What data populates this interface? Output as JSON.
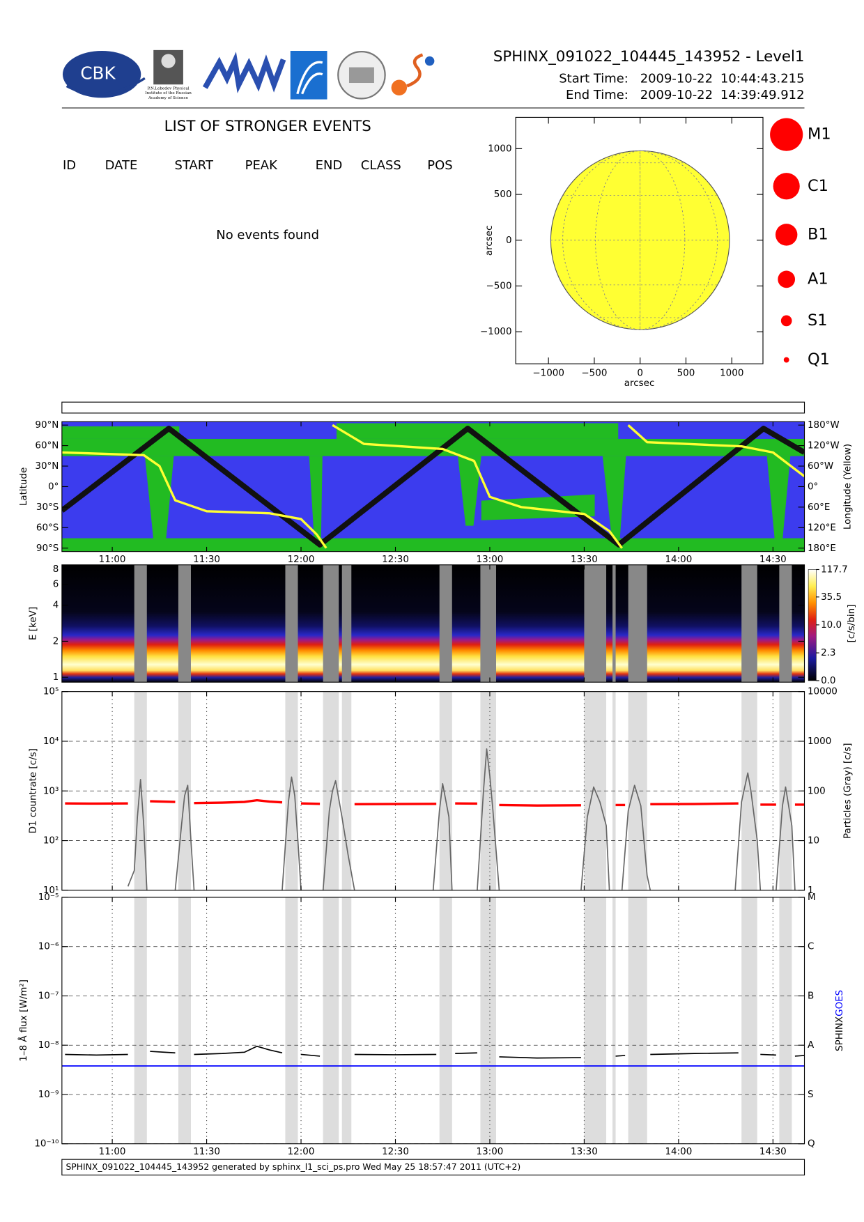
{
  "header": {
    "title": "SPHINX_091022_104445_143952 - Level1",
    "start_label": "Start Time:",
    "start_date": "2009-10-22",
    "start_time": "10:44:43.215",
    "end_label": "End Time:",
    "end_date": "2009-10-22",
    "end_time": "14:39:49.912",
    "logo_cbk": "CBK",
    "logo_lebedev": [
      "P.N.Lebedev Physical",
      "Institute of the Russian",
      "Academy of Science"
    ]
  },
  "events": {
    "title": "LIST OF STRONGER EVENTS",
    "columns": [
      "ID",
      "DATE",
      "START",
      "PEAK",
      "END",
      "CLASS",
      "POS"
    ],
    "message": "No events found"
  },
  "flare_classes": [
    "M1",
    "C1",
    "B1",
    "A1",
    "S1",
    "Q1"
  ],
  "data_gaps": [
    [
      "11:07",
      "11:11"
    ],
    [
      "11:21",
      "11:25"
    ],
    [
      "11:55",
      "11:59"
    ],
    [
      "12:07",
      "12:12"
    ],
    [
      "12:13",
      "12:16"
    ],
    [
      "12:44",
      "12:48"
    ],
    [
      "12:57",
      "13:02"
    ],
    [
      "13:30",
      "13:37"
    ],
    [
      "13:39",
      "13:40"
    ],
    [
      "13:44",
      "13:50"
    ],
    [
      "14:20",
      "14:25"
    ],
    [
      "14:32",
      "14:36"
    ]
  ],
  "chart_data": [
    {
      "type": "disk",
      "xlabel": "arcsec",
      "ylabel": "arcsec",
      "xlim": [
        -1357,
        1340
      ],
      "ylim": [
        -1350,
        1342
      ],
      "xticks": [
        {
          "value": -1000,
          "label": "−1000"
        },
        {
          "value": -500,
          "label": "−500"
        },
        0,
        500,
        1000
      ],
      "yticks": [
        {
          "value": -1000,
          "label": "−1000"
        },
        {
          "value": -500,
          "label": "−500"
        },
        0,
        500,
        1000
      ],
      "radius": 975,
      "color": "#ffff33"
    },
    {
      "type": "line",
      "ylabel": "Latitude",
      "y2label": "Longitude (Yellow)",
      "xlim": [
        "10:44",
        "14:40"
      ],
      "xticks": [
        "11:00",
        "11:30",
        "12:00",
        "12:30",
        "13:00",
        "13:30",
        "14:00",
        "14:30"
      ],
      "ylim": [
        -95,
        95
      ],
      "yticks": [
        {
          "value": -90,
          "label": "90°S"
        },
        {
          "value": -60,
          "label": "60°S"
        },
        {
          "value": -30,
          "label": "30°S"
        },
        {
          "value": 0,
          "label": "0°"
        },
        {
          "value": 30,
          "label": "30°N"
        },
        {
          "value": 60,
          "label": "60°N"
        },
        {
          "value": 90,
          "label": "90°N"
        }
      ],
      "y2lim": [
        -190,
        190
      ],
      "y2ticks": [
        {
          "value": -180,
          "label": "180°E"
        },
        {
          "value": -120,
          "label": "120°E"
        },
        {
          "value": -60,
          "label": "60°E"
        },
        {
          "value": 0,
          "label": "0°"
        },
        {
          "value": 60,
          "label": "60°W"
        },
        {
          "value": 120,
          "label": "120°W"
        },
        {
          "value": 180,
          "label": "180°W"
        }
      ],
      "series": [
        {
          "color": "#111111",
          "x": [
            "10:44",
            "11:18",
            "12:06",
            "12:53",
            "13:41",
            "14:27",
            "14:40"
          ],
          "values": [
            -35,
            85,
            -85,
            85,
            -85,
            85,
            50
          ]
        },
        {
          "color": "#ffff33",
          "axis": "y2",
          "x": [
            "10:44",
            "11:10",
            "11:15",
            "11:20",
            "11:30",
            "11:50",
            "12:00",
            "12:05",
            "12:08",
            "12:09",
            "12:10",
            "12:20",
            "12:45",
            "12:55",
            "13:00",
            "13:10",
            "13:30",
            "13:38",
            "13:42",
            "13:43",
            "13:44",
            "13:50",
            "14:20",
            "14:30",
            "14:40"
          ],
          "values": [
            100,
            92,
            60,
            -40,
            -72,
            -78,
            -95,
            -140,
            -180,
            null,
            180,
            125,
            110,
            75,
            -30,
            -60,
            -80,
            -130,
            -180,
            null,
            180,
            130,
            118,
            100,
            30
          ]
        }
      ]
    },
    {
      "type": "spectrogram",
      "ylabel": "E [keV]",
      "log_y": true,
      "xlim": [
        "10:44",
        "14:40"
      ],
      "xticks": [
        "11:00",
        "11:30",
        "12:00",
        "12:30",
        "13:00",
        "13:30",
        "14:00",
        "14:30"
      ],
      "ylim": [
        0.91,
        8.7
      ],
      "yticks": [
        1,
        2,
        4,
        6,
        8
      ],
      "clim": [
        0,
        117.7
      ],
      "cscale": "log1p",
      "cticks": [
        {
          "value": 0,
          "label": "0.0"
        },
        2.3,
        {
          "value": 10,
          "label": "10.0"
        },
        35.5,
        117.7
      ],
      "clabel": "[c/s/bin]"
    },
    {
      "type": "line",
      "ylabel": "D1 countrate [c/s]",
      "y2label": "Particles (Gray) [c/s]",
      "log_y": true,
      "grid": true,
      "xlim": [
        "10:44",
        "14:40"
      ],
      "xticks": [
        "11:00",
        "11:30",
        "12:00",
        "12:30",
        "13:00",
        "13:30",
        "14:00",
        "14:30"
      ],
      "ylim": [
        10,
        100000
      ],
      "yticks": [
        {
          "value": 10,
          "label": "10¹"
        },
        {
          "value": 100,
          "label": "10²"
        },
        {
          "value": 1000,
          "label": "10³"
        },
        {
          "value": 10000,
          "label": "10⁴"
        },
        {
          "value": 100000,
          "label": "10⁵"
        }
      ],
      "y2lim": [
        1,
        10000
      ],
      "y2ticks": [
        1,
        10,
        100,
        1000,
        10000
      ],
      "series": [
        {
          "color": "#ff0000",
          "x": [
            "10:45",
            "10:55",
            "11:05",
            "11:09",
            "11:12",
            "11:20",
            "11:23",
            "11:26",
            "11:35",
            "11:42",
            "11:46",
            "11:50",
            "11:54",
            "11:57",
            "12:00",
            "12:06",
            "12:14",
            "12:17",
            "12:30",
            "12:43",
            "12:46",
            "12:49",
            "12:56",
            "13:00",
            "13:03",
            "13:15",
            "13:29",
            "13:33",
            "13:40",
            "13:43",
            "13:47",
            "13:51",
            "14:05",
            "14:19",
            "14:22",
            "14:26",
            "14:31",
            "14:34",
            "14:37",
            "14:40"
          ],
          "values": [
            560,
            555,
            560,
            null,
            620,
            600,
            null,
            570,
            580,
            600,
            650,
            610,
            590,
            null,
            560,
            550,
            null,
            540,
            545,
            550,
            null,
            560,
            555,
            null,
            520,
            510,
            515,
            null,
            520,
            520,
            null,
            540,
            545,
            560,
            null,
            530,
            530,
            null,
            530,
            530
          ]
        },
        {
          "color": "#666666",
          "axis": "y2",
          "x": [
            "11:05",
            "11:07",
            "11:08",
            "11:09",
            "11:10",
            "11:11",
            "11:15",
            "11:20",
            "11:22",
            "11:23",
            "11:24",
            "11:25",
            "11:26",
            "11:40",
            "11:54",
            "11:56",
            "11:57",
            "11:58",
            "11:59",
            "12:00",
            "12:04",
            "12:07",
            "12:09",
            "12:10",
            "12:11",
            "12:13",
            "12:15",
            "12:17",
            "12:30",
            "12:42",
            "12:44",
            "12:45",
            "12:47",
            "12:48",
            "12:52",
            "12:56",
            "12:58",
            "12:59",
            "13:00",
            "13:01",
            "13:03",
            "13:20",
            "13:29",
            "13:31",
            "13:33",
            "13:35",
            "13:37",
            "13:38",
            "13:41",
            "13:42",
            "13:44",
            "13:46",
            "13:48",
            "13:50",
            "13:51",
            "14:10",
            "14:18",
            "14:20",
            "14:22",
            "14:23",
            "14:25",
            "14:26",
            "14:29",
            "14:31",
            "14:33",
            "14:34",
            "14:36",
            "14:37"
          ],
          "values": [
            1.2,
            2.5,
            30,
            170,
            20,
            1,
            null,
            1,
            20,
            80,
            130,
            10,
            1,
            null,
            1,
            60,
            190,
            80,
            10,
            1,
            null,
            1,
            40,
            100,
            160,
            30,
            5,
            1,
            null,
            1,
            40,
            140,
            30,
            1,
            null,
            1,
            100,
            700,
            200,
            40,
            1,
            null,
            1,
            30,
            120,
            60,
            20,
            1,
            null,
            1,
            40,
            130,
            50,
            2,
            1,
            null,
            1,
            60,
            230,
            100,
            10,
            1,
            null,
            1,
            50,
            120,
            20,
            1
          ]
        }
      ]
    },
    {
      "type": "line",
      "ylabel": "1–8 Å flux [W/m²]",
      "log_y": true,
      "grid": true,
      "xlim": [
        "10:44",
        "14:40"
      ],
      "xticks": [
        "11:00",
        "11:30",
        "12:00",
        "12:30",
        "13:00",
        "13:30",
        "14:00",
        "14:30"
      ],
      "ylim": [
        1e-10,
        1e-05
      ],
      "yticks": [
        {
          "value": 1e-10,
          "label": "10⁻¹⁰"
        },
        {
          "value": 1e-09,
          "label": "10⁻⁹"
        },
        {
          "value": 1e-08,
          "label": "10⁻⁸"
        },
        {
          "value": 1e-07,
          "label": "10⁻⁷"
        },
        {
          "value": 1e-06,
          "label": "10⁻⁶"
        },
        {
          "value": 1e-05,
          "label": "10⁻⁵"
        }
      ],
      "y2lim": [
        1e-10,
        1e-05
      ],
      "y2ticks": [
        {
          "value": 1e-10,
          "label": "Q"
        },
        {
          "value": 1e-09,
          "label": "S"
        },
        {
          "value": 1e-08,
          "label": "A"
        },
        {
          "value": 1e-07,
          "label": "B"
        },
        {
          "value": 1e-06,
          "label": "C"
        },
        {
          "value": 1e-05,
          "label": "M"
        }
      ],
      "series": [
        {
          "name": "SPHINX",
          "color": "#000000",
          "x": [
            "10:45",
            "10:55",
            "11:05",
            "11:09",
            "11:12",
            "11:20",
            "11:23",
            "11:26",
            "11:35",
            "11:42",
            "11:46",
            "11:50",
            "11:54",
            "11:57",
            "12:00",
            "12:06",
            "12:14",
            "12:17",
            "12:30",
            "12:43",
            "12:46",
            "12:49",
            "12:56",
            "13:00",
            "13:03",
            "13:15",
            "13:29",
            "13:33",
            "13:40",
            "13:43",
            "13:47",
            "13:51",
            "14:05",
            "14:19",
            "14:22",
            "14:26",
            "14:31",
            "14:34",
            "14:37",
            "14:40"
          ],
          "values": [
            6.5e-09,
            6.3e-09,
            6.5e-09,
            null,
            7.5e-09,
            7e-09,
            null,
            6.5e-09,
            6.8e-09,
            7.2e-09,
            9.5e-09,
            8e-09,
            7e-09,
            null,
            6.5e-09,
            6e-09,
            null,
            6.5e-09,
            6.4e-09,
            6.5e-09,
            null,
            6.8e-09,
            7e-09,
            null,
            5.8e-09,
            5.5e-09,
            5.6e-09,
            null,
            6e-09,
            6.2e-09,
            null,
            6.5e-09,
            6.8e-09,
            7e-09,
            null,
            6.5e-09,
            6.3e-09,
            null,
            6e-09,
            6.2e-09
          ]
        },
        {
          "name": "GOES",
          "color": "#0000ff",
          "x": [
            "10:44",
            "14:40"
          ],
          "values": [
            3.8e-09,
            3.8e-09
          ]
        }
      ]
    }
  ],
  "footer": "SPHINX_091022_104445_143952 generated by sphinx_l1_sci_ps.pro Wed May 25 18:57:47 2011 (UTC+2)"
}
